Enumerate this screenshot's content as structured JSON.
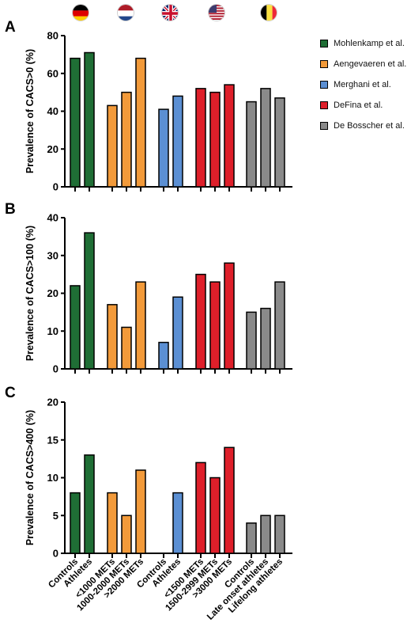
{
  "flags": [
    {
      "country": "Germany",
      "icon": "germany-flag-icon"
    },
    {
      "country": "Netherlands",
      "icon": "netherlands-flag-icon"
    },
    {
      "country": "United Kingdom",
      "icon": "uk-flag-icon"
    },
    {
      "country": "United States",
      "icon": "usa-flag-icon"
    },
    {
      "country": "Belgium",
      "icon": "belgium-flag-icon"
    }
  ],
  "legend": [
    {
      "label": "Mohlenkamp et al.",
      "color": "#1f6e35"
    },
    {
      "label": "Aengevaeren et al.",
      "color": "#f29a3a"
    },
    {
      "label": "Merghani et al.",
      "color": "#5b8fd3"
    },
    {
      "label": "DeFina et al.",
      "color": "#de1f2a"
    },
    {
      "label": "De Bosscher et al.",
      "color": "#8a8a8a"
    }
  ],
  "chart_data": [
    {
      "type": "bar",
      "panel_label": "A",
      "ylabel": "Prevalence of CACS>0 (%)",
      "ylim": [
        0,
        80
      ],
      "yticks": [
        0,
        20,
        40,
        60,
        80
      ],
      "categories": [
        "Controls",
        "Athletes",
        "<1000 METs",
        "1000-2000 METs",
        ">2000 METs",
        "Controls",
        "Athletes",
        "<1500 METs",
        "1500-2999 METs",
        ">3000 METs",
        "Controls",
        "Late onset athletes",
        "Lifelong athletes"
      ],
      "groups": [
        0,
        0,
        1,
        1,
        1,
        2,
        2,
        3,
        3,
        3,
        4,
        4,
        4
      ],
      "values": [
        68,
        71,
        43,
        50,
        68,
        41,
        48,
        52,
        50,
        54,
        45,
        52,
        47
      ]
    },
    {
      "type": "bar",
      "panel_label": "B",
      "ylabel": "Prevalence of CACS>100 (%)",
      "ylim": [
        0,
        40
      ],
      "yticks": [
        0,
        10,
        20,
        30,
        40
      ],
      "categories": [
        "Controls",
        "Athletes",
        "<1000 METs",
        "1000-2000 METs",
        ">2000 METs",
        "Controls",
        "Athletes",
        "<1500 METs",
        "1500-2999 METs",
        ">3000 METs",
        "Controls",
        "Late onset athletes",
        "Lifelong athletes"
      ],
      "groups": [
        0,
        0,
        1,
        1,
        1,
        2,
        2,
        3,
        3,
        3,
        4,
        4,
        4
      ],
      "values": [
        22,
        36,
        17,
        11,
        23,
        7,
        19,
        25,
        23,
        28,
        15,
        16,
        23
      ]
    },
    {
      "type": "bar",
      "panel_label": "C",
      "ylabel": "Prevalence of CACS>400 (%)",
      "ylim": [
        0,
        20
      ],
      "yticks": [
        0,
        5,
        10,
        15,
        20
      ],
      "categories": [
        "Controls",
        "Athletes",
        "<1000 METs",
        "1000-2000 METs",
        ">2000 METs",
        "Controls",
        "Athletes",
        "<1500 METs",
        "1500-2999 METs",
        ">3000 METs",
        "Controls",
        "Late onset athletes",
        "Lifelong athletes"
      ],
      "groups": [
        0,
        0,
        1,
        1,
        1,
        2,
        2,
        3,
        3,
        3,
        4,
        4,
        4
      ],
      "values": [
        8,
        13,
        8,
        5,
        11,
        null,
        8,
        12,
        10,
        14,
        4,
        5,
        5
      ]
    }
  ]
}
